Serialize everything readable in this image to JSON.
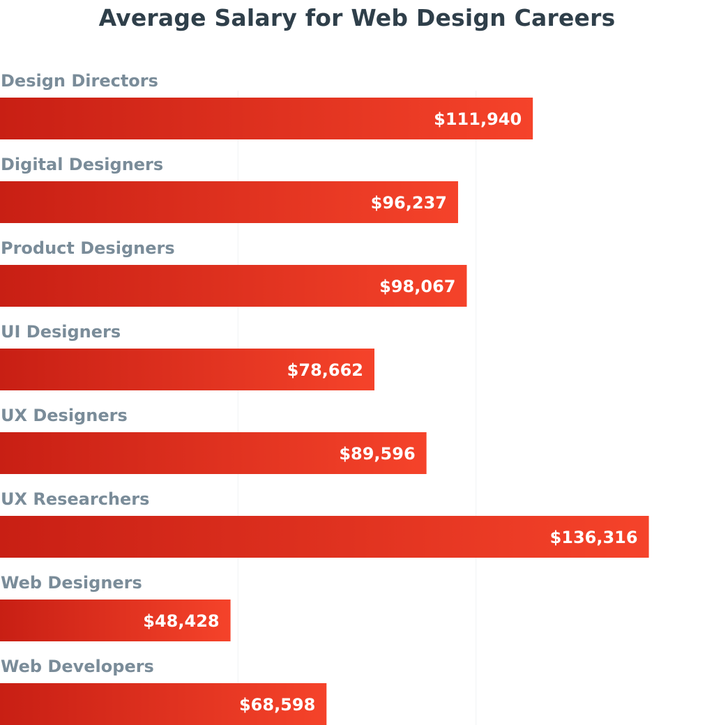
{
  "chart_data": {
    "type": "bar",
    "orientation": "horizontal",
    "title": "Average Salary for Web Design Careers",
    "categories": [
      "Design Directors",
      "Digital Designers",
      "Product Designers",
      "UI Designers",
      "UX Designers",
      "UX Researchers",
      "Web Designers",
      "Web Developers"
    ],
    "values": [
      111940,
      96237,
      98067,
      78662,
      89596,
      136316,
      48428,
      68598
    ],
    "value_labels": [
      "$111,940",
      "$96,237",
      "$98,067",
      "$78,662",
      "$89,596",
      "$136,316",
      "$48,428",
      "$68,598"
    ],
    "xlim": [
      0,
      150000
    ],
    "grid": true,
    "bar_gradient": [
      "#c81f14",
      "#f5432a"
    ],
    "label_color": "#7a8c99",
    "title_color": "#2f3f4a"
  }
}
